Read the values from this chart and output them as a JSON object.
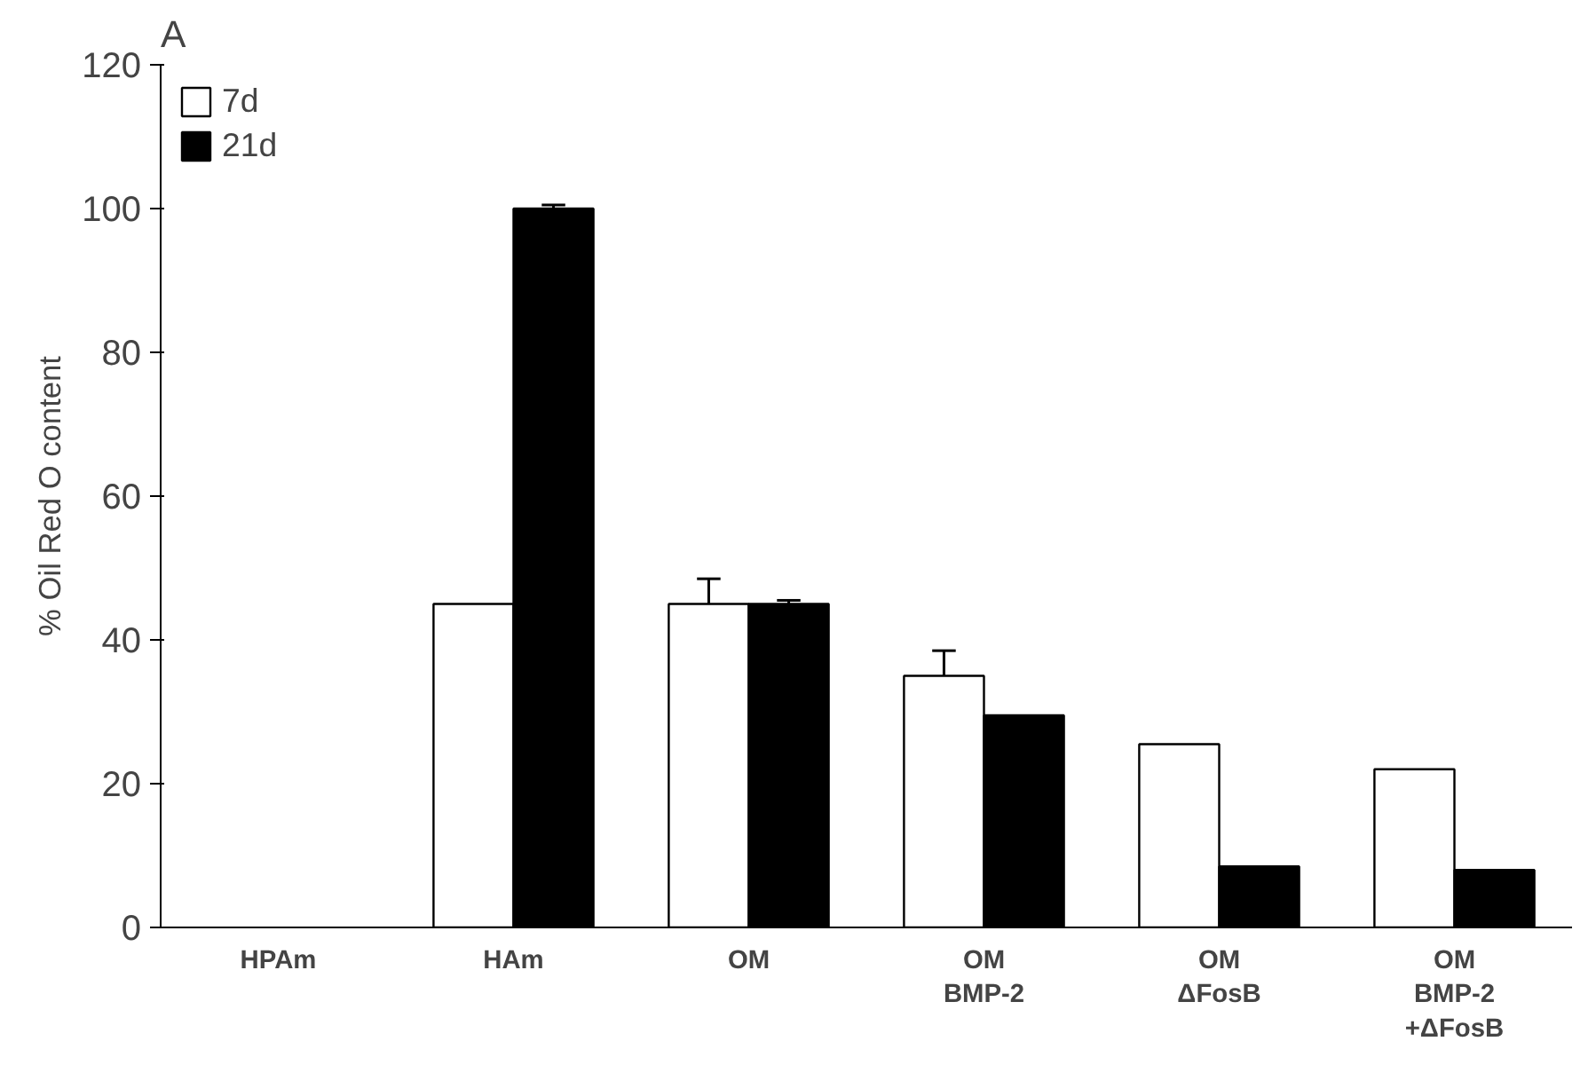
{
  "chart_data": {
    "type": "bar",
    "title": "A",
    "ylabel": "% Oil Red O content",
    "categories": [
      "HPAm",
      "HAm",
      "OM",
      "OM\nBMP-2",
      "OM\nΔFosB",
      "OM\nBMP-2\n+ΔFosB"
    ],
    "series": [
      {
        "name": "7d",
        "color": "#ffffff",
        "values": [
          null,
          45,
          45,
          35,
          25.5,
          22
        ],
        "errors": [
          null,
          null,
          3.5,
          3.5,
          null,
          null
        ]
      },
      {
        "name": "21d",
        "color": "#000000",
        "values": [
          null,
          100,
          45,
          29.5,
          8.5,
          8
        ],
        "errors": [
          null,
          0.5,
          0.5,
          null,
          null,
          null
        ]
      }
    ],
    "ylim": [
      0,
      120
    ],
    "yticks": [
      0,
      20,
      40,
      60,
      80,
      100,
      120
    ],
    "grid": false,
    "legend": "top left"
  }
}
